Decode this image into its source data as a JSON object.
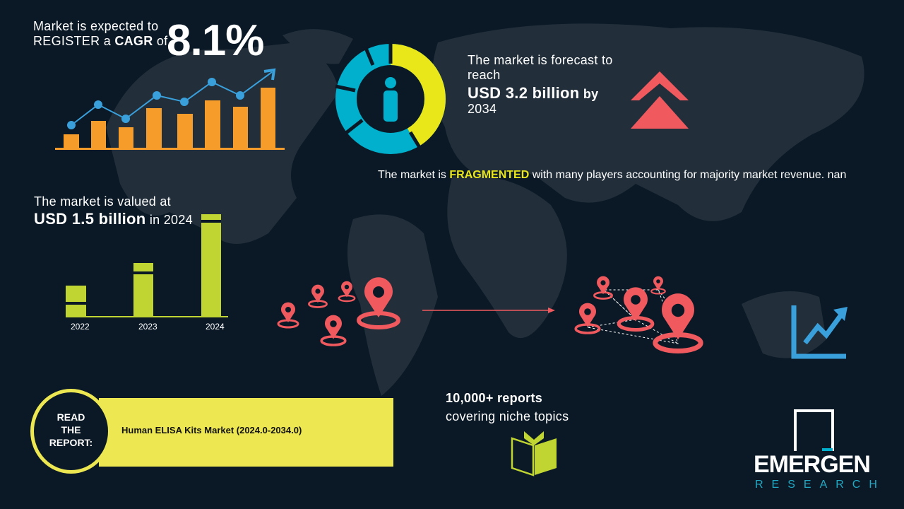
{
  "cagr": {
    "line1": "Market is expected to",
    "line2_pre": "REGISTER a ",
    "line2_bold": "CAGR",
    "line2_post": " of",
    "value": "8.1%"
  },
  "forecast": {
    "line1": "The market is forecast to",
    "line2": "reach",
    "amount": "USD 3.2 billion",
    "by": " by",
    "year": "2034"
  },
  "fragmented": {
    "pre": "The market is ",
    "highlight": "FRAGMENTED",
    "post": " with many players accounting for majority market revenue. nan"
  },
  "valued": {
    "line1": "The market is valued at",
    "amount": "USD 1.5 billion",
    "post": " in 2024"
  },
  "value_bars": {
    "years": [
      "2022",
      "2023",
      "2024"
    ]
  },
  "reports": {
    "line1": "10,000+ reports",
    "line2": "covering niche topics"
  },
  "read_report": {
    "label": [
      "READ",
      "THE",
      "REPORT:"
    ],
    "title": "Human ELISA Kits Market (2024.0-2034.0)"
  },
  "logo": {
    "name": "EMERGEN",
    "sub": "RESEARCH"
  },
  "colors": {
    "background": "#0b1926",
    "map": "#222f3b",
    "orange": "#f59c2a",
    "blue": "#3aa0dc",
    "yellow": "#e9e61a",
    "cyan": "#00b0cc",
    "green": "#c0d531",
    "red": "#f05a5f",
    "banner": "#ede852"
  },
  "icons": [
    "bar-line-chart-icon",
    "donut-person-icon",
    "double-chevron-up-icon",
    "location-pin-icon",
    "network-pins-icon",
    "growth-chart-icon",
    "open-book-icon"
  ]
}
